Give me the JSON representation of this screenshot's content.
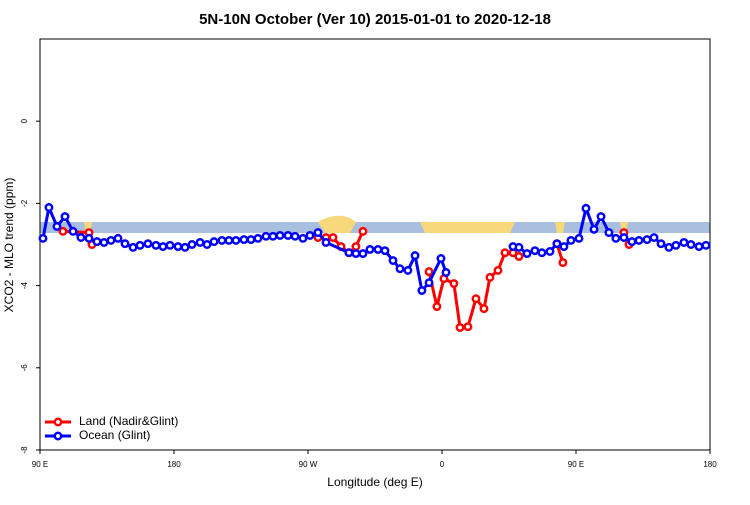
{
  "chart_data": {
    "type": "line",
    "title": "5N-10N October (Ver 10)   2015-01-01 to 2020-12-18",
    "x_label": "Longitude (deg E)",
    "y_label": "XCO2 - MLO trend (ppm)",
    "xlim": [
      90,
      540
    ],
    "ylim": [
      -8,
      2
    ],
    "xticks": [
      {
        "value": 90,
        "label": "90 E"
      },
      {
        "value": 180,
        "label": "180"
      },
      {
        "value": 270,
        "label": "90 W"
      },
      {
        "value": 360,
        "label": "0"
      },
      {
        "value": 450,
        "label": "90 E"
      },
      {
        "value": 540,
        "label": "180"
      }
    ],
    "yticks": [
      0,
      -2,
      -4,
      -6,
      -8
    ],
    "legend": "bottom-left",
    "series": [
      {
        "name": "Land (Nadir&Glint)",
        "color": "#ff0000",
        "x": [
          105.4,
          122.9,
          124.9,
          null,
          276.7,
          282.1,
          286.8,
          292.2,
          297.5,
          302.2,
          306.9,
          null,
          351.3,
          356.6,
          361.3,
          368.0,
          372.1,
          377.4,
          382.8,
          388.2,
          392.2,
          397.6,
          402.3,
          407.7,
          411.7,
          null,
          437.2,
          441.2,
          null,
          482.2,
          485.6
        ],
        "values": [
          -2.68,
          -2.71,
          -3.0,
          null,
          -2.83,
          -2.83,
          -2.83,
          -3.05,
          -3.2,
          -3.05,
          -2.68,
          null,
          -3.66,
          -4.51,
          -3.83,
          -3.95,
          -5.02,
          -5.0,
          -4.32,
          -4.56,
          -3.8,
          -3.63,
          -3.2,
          -3.2,
          -3.29,
          null,
          -2.98,
          -3.44,
          null,
          -2.71,
          -3.0
        ]
      },
      {
        "name": "Ocean (Glint)",
        "color": "#0000ff",
        "x": [
          92.0,
          96.0,
          101.4,
          106.8,
          112.2,
          117.5,
          122.9,
          128.3,
          133.0,
          137.7,
          142.4,
          147.1,
          152.5,
          157.2,
          162.5,
          167.9,
          172.6,
          177.3,
          182.7,
          187.4,
          192.1,
          197.5,
          202.2,
          206.9,
          212.2,
          216.9,
          221.6,
          227.0,
          231.7,
          236.4,
          241.8,
          246.5,
          251.2,
          256.6,
          261.3,
          266.6,
          271.3,
          276.7,
          282.1,
          297.5,
          302.2,
          306.9,
          311.6,
          317.0,
          321.7,
          327.1,
          331.8,
          337.1,
          341.9,
          346.5,
          351.3,
          359.3,
          362.7,
          null,
          407.7,
          411.7,
          417.1,
          422.4,
          427.1,
          432.5,
          437.2,
          441.9,
          446.6,
          452.0,
          456.7,
          462.1,
          466.8,
          472.1,
          476.8,
          482.2,
          487.6,
          492.3,
          497.7,
          502.4,
          507.1,
          512.4,
          517.1,
          522.5,
          527.2,
          532.6,
          537.3
        ],
        "values": [
          -2.85,
          -2.1,
          -2.56,
          -2.32,
          -2.68,
          -2.83,
          -2.85,
          -2.93,
          -2.95,
          -2.9,
          -2.85,
          -2.98,
          -3.07,
          -3.02,
          -2.98,
          -3.02,
          -3.05,
          -3.02,
          -3.05,
          -3.07,
          -3.0,
          -2.95,
          -3.0,
          -2.93,
          -2.9,
          -2.9,
          -2.9,
          -2.88,
          -2.88,
          -2.85,
          -2.8,
          -2.8,
          -2.78,
          -2.78,
          -2.8,
          -2.85,
          -2.78,
          -2.71,
          -2.95,
          -3.2,
          -3.22,
          -3.22,
          -3.12,
          -3.12,
          -3.15,
          -3.39,
          -3.59,
          -3.63,
          -3.27,
          -4.12,
          -3.93,
          -3.34,
          -3.68,
          null,
          -3.05,
          -3.07,
          -3.22,
          -3.15,
          -3.2,
          -3.17,
          -2.98,
          -3.05,
          -2.9,
          -2.85,
          -2.12,
          -2.63,
          -2.32,
          -2.71,
          -2.85,
          -2.83,
          -2.93,
          -2.9,
          -2.88,
          -2.83,
          -2.98,
          -3.07,
          -3.02,
          -2.95,
          -3.0,
          -3.05,
          -3.02
        ]
      }
    ]
  }
}
